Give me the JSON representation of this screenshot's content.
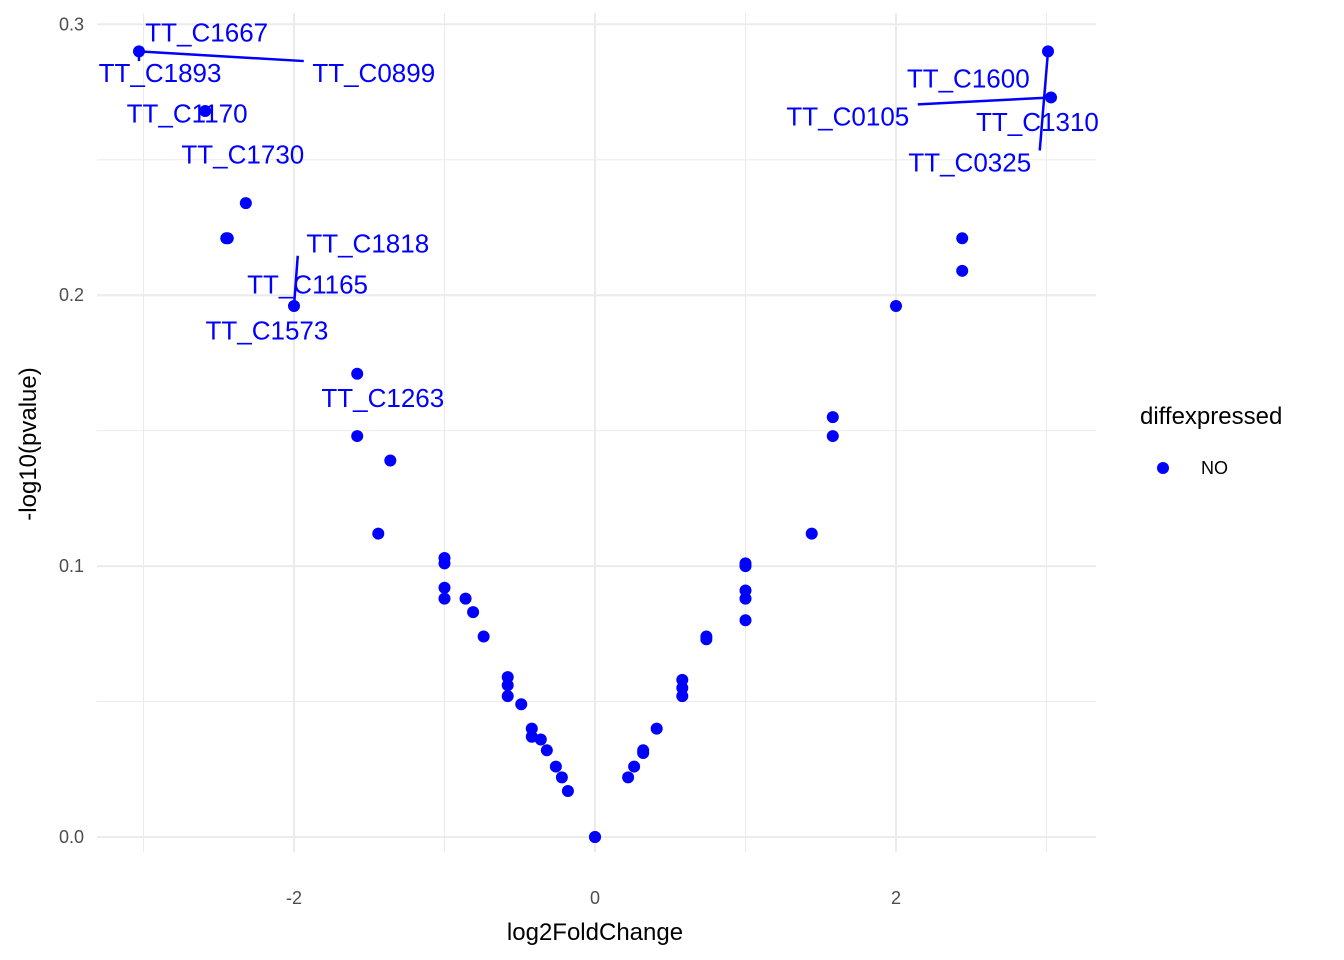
{
  "chart_data": {
    "type": "scatter",
    "xlabel": "log2FoldChange",
    "ylabel": "-log10(pvalue)",
    "xlim": [
      -3.0,
      3.0
    ],
    "ylim": [
      0.0,
      0.3
    ],
    "x_ticks": [
      -2,
      0,
      2
    ],
    "y_ticks": [
      0.0,
      0.1,
      0.2,
      0.3
    ],
    "x_tick_labels": [
      "-2",
      "0",
      "2"
    ],
    "y_tick_labels": [
      "0.0",
      "0.1",
      "0.2",
      "0.3"
    ],
    "grid": true,
    "point_color": "#0000ff",
    "legend": {
      "title": "diffexpressed",
      "placement": "right",
      "entries": [
        {
          "label": "NO",
          "color": "#0000ff"
        }
      ]
    },
    "points": [
      {
        "x": -3.03,
        "y": 0.29
      },
      {
        "x": -2.59,
        "y": 0.268
      },
      {
        "x": -2.32,
        "y": 0.234
      },
      {
        "x": -2.45,
        "y": 0.221
      },
      {
        "x": -2.44,
        "y": 0.221
      },
      {
        "x": -2.0,
        "y": 0.196
      },
      {
        "x": -1.58,
        "y": 0.171
      },
      {
        "x": -1.58,
        "y": 0.148
      },
      {
        "x": -1.36,
        "y": 0.139
      },
      {
        "x": -1.44,
        "y": 0.112
      },
      {
        "x": -1.0,
        "y": 0.103
      },
      {
        "x": -1.0,
        "y": 0.101
      },
      {
        "x": -1.0,
        "y": 0.092
      },
      {
        "x": -1.0,
        "y": 0.088
      },
      {
        "x": -0.86,
        "y": 0.088
      },
      {
        "x": -0.81,
        "y": 0.083
      },
      {
        "x": -0.74,
        "y": 0.074
      },
      {
        "x": -0.58,
        "y": 0.059
      },
      {
        "x": -0.58,
        "y": 0.056
      },
      {
        "x": -0.58,
        "y": 0.052
      },
      {
        "x": -0.49,
        "y": 0.049
      },
      {
        "x": -0.42,
        "y": 0.04
      },
      {
        "x": -0.42,
        "y": 0.037
      },
      {
        "x": -0.36,
        "y": 0.036
      },
      {
        "x": -0.32,
        "y": 0.032
      },
      {
        "x": -0.26,
        "y": 0.026
      },
      {
        "x": -0.22,
        "y": 0.022
      },
      {
        "x": -0.18,
        "y": 0.017
      },
      {
        "x": 0.0,
        "y": 0.0
      },
      {
        "x": 0.0,
        "y": 0.0
      },
      {
        "x": 0.22,
        "y": 0.022
      },
      {
        "x": 0.26,
        "y": 0.026
      },
      {
        "x": 0.32,
        "y": 0.032
      },
      {
        "x": 0.32,
        "y": 0.031
      },
      {
        "x": 0.41,
        "y": 0.04
      },
      {
        "x": 0.58,
        "y": 0.058
      },
      {
        "x": 0.58,
        "y": 0.055
      },
      {
        "x": 0.58,
        "y": 0.052
      },
      {
        "x": 0.74,
        "y": 0.074
      },
      {
        "x": 0.74,
        "y": 0.073
      },
      {
        "x": 1.0,
        "y": 0.101
      },
      {
        "x": 1.0,
        "y": 0.1
      },
      {
        "x": 1.0,
        "y": 0.091
      },
      {
        "x": 1.0,
        "y": 0.088
      },
      {
        "x": 1.0,
        "y": 0.08
      },
      {
        "x": 1.44,
        "y": 0.112
      },
      {
        "x": 1.58,
        "y": 0.155
      },
      {
        "x": 1.58,
        "y": 0.148
      },
      {
        "x": 2.0,
        "y": 0.196
      },
      {
        "x": 2.44,
        "y": 0.221
      },
      {
        "x": 2.44,
        "y": 0.209
      },
      {
        "x": 3.01,
        "y": 0.29
      },
      {
        "x": 3.03,
        "y": 0.273
      }
    ],
    "labels": [
      {
        "text": "TT_C1667",
        "px": -3.03,
        "py": 0.29,
        "lx": -2.58,
        "ly": 0.297,
        "line": false
      },
      {
        "text": "TT_C1893",
        "px": -3.03,
        "py": 0.29,
        "lx": -2.89,
        "ly": 0.282,
        "line": true
      },
      {
        "text": "TT_C0899",
        "px": -3.03,
        "py": 0.29,
        "lx": -1.47,
        "ly": 0.282,
        "line": true
      },
      {
        "text": "TT_C1170",
        "px": -3.03,
        "py": 0.29,
        "lx": -2.71,
        "ly": 0.267,
        "line": false
      },
      {
        "text": "TT_C1730",
        "px": -2.59,
        "py": 0.268,
        "lx": -2.34,
        "ly": 0.252,
        "line": false
      },
      {
        "text": "TT_C1818",
        "px": -2.0,
        "py": 0.196,
        "lx": -1.51,
        "ly": 0.219,
        "line": true
      },
      {
        "text": "TT_C1165",
        "px": -2.0,
        "py": 0.196,
        "lx": -1.91,
        "ly": 0.204,
        "line": false
      },
      {
        "text": "TT_C1573",
        "px": -2.0,
        "py": 0.196,
        "lx": -2.18,
        "ly": 0.187,
        "line": false
      },
      {
        "text": "TT_C1263",
        "px": -1.58,
        "py": 0.171,
        "lx": -1.41,
        "ly": 0.162,
        "line": false
      },
      {
        "text": "TT_C1600",
        "px": 3.03,
        "py": 0.273,
        "lx": 2.48,
        "ly": 0.28,
        "line": false
      },
      {
        "text": "TT_C0105",
        "px": 3.03,
        "py": 0.273,
        "lx": 1.68,
        "ly": 0.266,
        "line": true
      },
      {
        "text": "TT_C1310",
        "px": 3.03,
        "py": 0.273,
        "lx": 2.94,
        "ly": 0.264,
        "line": false
      },
      {
        "text": "TT_C0325",
        "px": 3.01,
        "py": 0.29,
        "lx": 2.49,
        "ly": 0.249,
        "line": true
      }
    ]
  }
}
